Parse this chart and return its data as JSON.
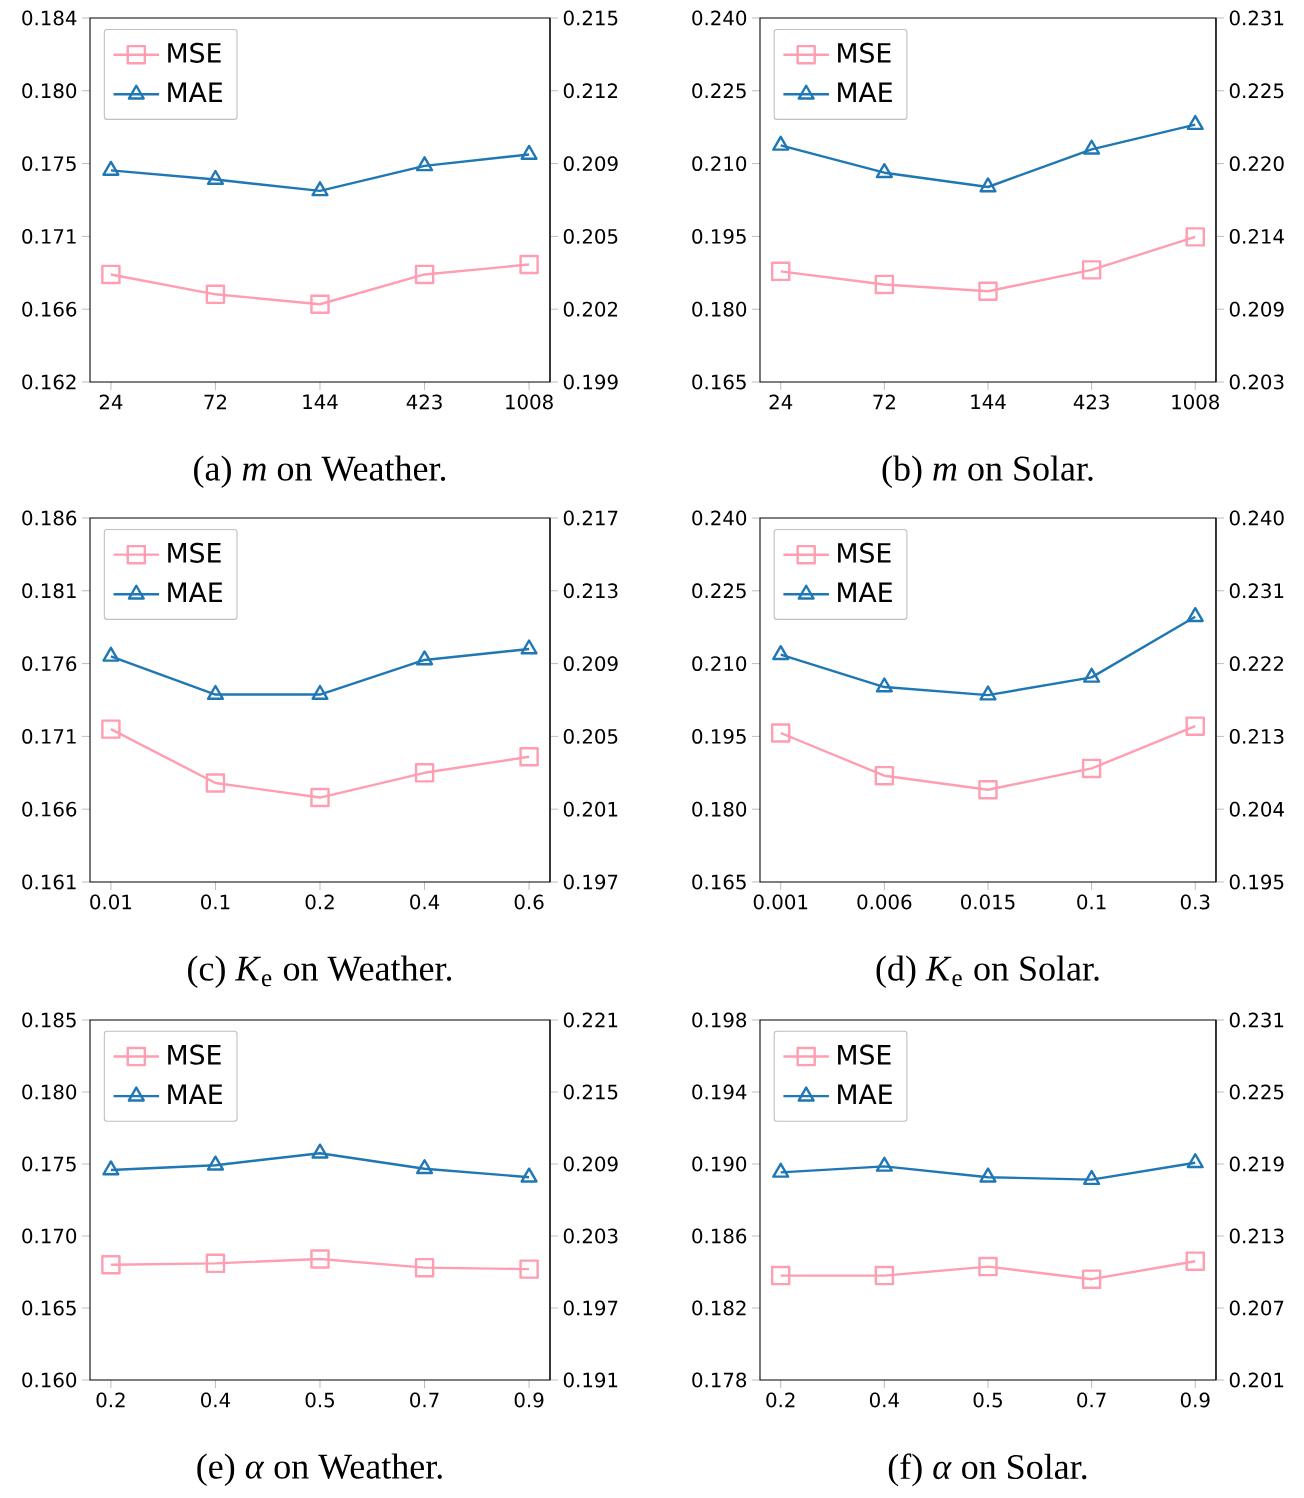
{
  "chart_data": [
    {
      "type": "line",
      "title": "(a) *m* on Weather.",
      "categories": [
        "24",
        "72",
        "144",
        "423",
        "1008"
      ],
      "ylim": [
        0.162,
        0.184
      ],
      "yticks": [
        0.162,
        {
          "value": 0.1664,
          "label": "0.166"
        },
        {
          "value": 0.1708,
          "label": "0.171"
        },
        {
          "value": 0.1752,
          "label": "0.175"
        },
        {
          "value": 0.1796,
          "label": "0.180"
        },
        0.184
      ],
      "y2lim": [
        0.199,
        0.215
      ],
      "y2ticks": [
        0.199,
        {
          "value": 0.2022,
          "label": "0.202"
        },
        {
          "value": 0.2054,
          "label": "0.205"
        },
        {
          "value": 0.2086,
          "label": "0.209"
        },
        {
          "value": 0.2118,
          "label": "0.212"
        },
        0.215
      ],
      "legend": "top left",
      "series": [
        {
          "name": "MSE",
          "color": "#ff9eb0",
          "marker": "square",
          "values": [
            0.1685,
            0.1673,
            0.1667,
            0.1685,
            0.1691
          ]
        },
        {
          "name": "MAE",
          "color": "#1f77b4",
          "marker": "triangle",
          "axis": "y2",
          "values": [
            0.2083,
            0.2079,
            0.2074,
            0.2085,
            0.209
          ]
        }
      ]
    },
    {
      "type": "line",
      "title": "(b) *m* on Solar.",
      "categories": [
        "24",
        "72",
        "144",
        "423",
        "1008"
      ],
      "ylim": [
        0.165,
        0.24
      ],
      "yticks": [
        0.165,
        {
          "value": 0.18,
          "label": "0.180"
        },
        0.195,
        {
          "value": 0.21,
          "label": "0.210"
        },
        0.225,
        {
          "value": 0.24,
          "label": "0.240"
        }
      ],
      "y2lim": [
        0.203,
        0.231
      ],
      "y2ticks": [
        0.203,
        {
          "value": 0.2086,
          "label": "0.209"
        },
        {
          "value": 0.2142,
          "label": "0.214"
        },
        {
          "value": 0.2198,
          "label": "0.220"
        },
        {
          "value": 0.2254,
          "label": "0.225"
        },
        0.231
      ],
      "legend": "top left",
      "series": [
        {
          "name": "MSE",
          "color": "#ff9eb0",
          "marker": "square",
          "values": [
            0.1878,
            0.1851,
            0.1837,
            0.1881,
            0.1949
          ]
        },
        {
          "name": "MAE",
          "color": "#1f77b4",
          "marker": "triangle",
          "axis": "y2",
          "values": [
            0.2212,
            0.2191,
            0.218,
            0.2209,
            0.2228
          ]
        }
      ]
    },
    {
      "type": "line",
      "title": "(c) *K*$_{e}$ on Weather.",
      "categories": [
        "0.01",
        "0.1",
        "0.2",
        "0.4",
        "0.6"
      ],
      "ylim": [
        0.161,
        0.186
      ],
      "yticks": [
        0.161,
        0.166,
        0.171,
        0.176,
        0.181,
        0.186
      ],
      "y2lim": [
        0.197,
        0.217
      ],
      "y2ticks": [
        0.197,
        0.201,
        0.205,
        0.209,
        0.213,
        0.217
      ],
      "legend": "top left",
      "series": [
        {
          "name": "MSE",
          "color": "#ff9eb0",
          "marker": "square",
          "values": [
            0.1715,
            0.1678,
            0.1668,
            0.1685,
            0.1696
          ]
        },
        {
          "name": "MAE",
          "color": "#1f77b4",
          "marker": "triangle",
          "axis": "y2",
          "values": [
            0.2094,
            0.2073,
            0.2073,
            0.2092,
            0.2098
          ]
        }
      ]
    },
    {
      "type": "line",
      "title": "(d) *K*$_{e}$ on Solar.",
      "categories": [
        "0.001",
        "0.006",
        "0.015",
        "0.1",
        "0.3"
      ],
      "ylim": [
        0.165,
        0.24
      ],
      "yticks": [
        0.165,
        {
          "value": 0.18,
          "label": "0.180"
        },
        0.195,
        {
          "value": 0.21,
          "label": "0.210"
        },
        0.225,
        {
          "value": 0.24,
          "label": "0.240"
        }
      ],
      "y2lim": [
        0.195,
        0.24
      ],
      "y2ticks": [
        0.195,
        0.204,
        0.213,
        0.222,
        0.231,
        {
          "value": 0.24,
          "label": "0.240"
        }
      ],
      "legend": "top left",
      "series": [
        {
          "name": "MSE",
          "color": "#ff9eb0",
          "marker": "square",
          "values": [
            0.1957,
            0.1869,
            0.184,
            0.1884,
            0.1971
          ]
        },
        {
          "name": "MAE",
          "color": "#1f77b4",
          "marker": "triangle",
          "axis": "y2",
          "values": [
            0.2231,
            0.2191,
            0.2181,
            0.2203,
            0.2278
          ]
        }
      ]
    },
    {
      "type": "line",
      "title": "(e) *α* on Weather.",
      "categories": [
        "0.2",
        "0.4",
        "0.5",
        "0.7",
        "0.9"
      ],
      "ylim": [
        0.16,
        0.185
      ],
      "yticks": [
        {
          "value": 0.16,
          "label": "0.160"
        },
        0.165,
        {
          "value": 0.17,
          "label": "0.170"
        },
        0.175,
        {
          "value": 0.18,
          "label": "0.180"
        },
        0.185
      ],
      "y2lim": [
        0.191,
        0.221
      ],
      "y2ticks": [
        0.191,
        0.197,
        0.203,
        0.209,
        0.215,
        0.221
      ],
      "legend": "top left",
      "series": [
        {
          "name": "MSE",
          "color": "#ff9eb0",
          "marker": "square",
          "values": [
            0.168,
            0.1681,
            0.1684,
            0.1678,
            0.1677
          ]
        },
        {
          "name": "MAE",
          "color": "#1f77b4",
          "marker": "triangle",
          "axis": "y2",
          "values": [
            0.2085,
            0.2089,
            0.2099,
            0.2086,
            0.2079
          ]
        }
      ]
    },
    {
      "type": "line",
      "title": "(f) *α* on Solar.",
      "categories": [
        "0.2",
        "0.4",
        "0.5",
        "0.7",
        "0.9"
      ],
      "ylim": [
        0.178,
        0.198
      ],
      "yticks": [
        0.178,
        0.182,
        0.186,
        {
          "value": 0.19,
          "label": "0.190"
        },
        0.194,
        0.198
      ],
      "y2lim": [
        0.201,
        0.231
      ],
      "y2ticks": [
        0.201,
        0.207,
        0.213,
        0.219,
        0.225,
        0.231
      ],
      "legend": "top left",
      "series": [
        {
          "name": "MSE",
          "color": "#ff9eb0",
          "marker": "square",
          "values": [
            0.1838,
            0.1838,
            0.1843,
            0.1836,
            0.1846
          ]
        },
        {
          "name": "MAE",
          "color": "#1f77b4",
          "marker": "triangle",
          "axis": "y2",
          "values": [
            0.2183,
            0.2188,
            0.2179,
            0.2177,
            0.2191
          ]
        }
      ]
    }
  ]
}
